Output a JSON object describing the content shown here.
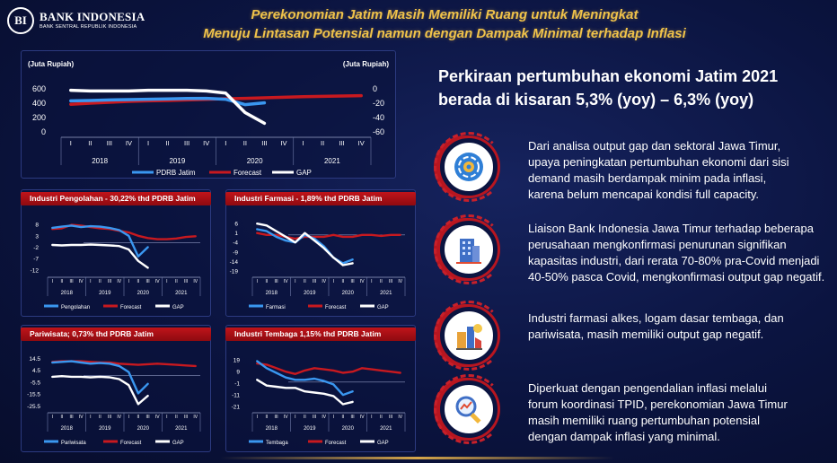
{
  "logo": {
    "name": "BANK INDONESIA",
    "sub": "BANK SENTRAL REPUBLIK INDONESIA"
  },
  "title": {
    "line1": "Perekonomian Jatim Masih Memiliki Ruang untuk Meningkat",
    "line2": "Menuju Lintasan Potensial namun dengan Dampak Minimal terhadap Inflasi"
  },
  "colors": {
    "pdrb": "#3a97f0",
    "forecast": "#c8191f",
    "gap": "#ffffff",
    "accent": "#f0c34a",
    "badge": "#b01218"
  },
  "quarters": [
    "I",
    "II",
    "III",
    "IV",
    "I",
    "II",
    "III",
    "IV",
    "I",
    "II",
    "III",
    "IV",
    "I",
    "II",
    "III",
    "IV"
  ],
  "years": [
    "2018",
    "2019",
    "2020",
    "2021"
  ],
  "chart_data": [
    {
      "id": "main",
      "type": "line",
      "left_axis_label": "(Juta Rupiah)",
      "right_axis_label": "(Juta Rupiah)",
      "left_ticks": [
        "600",
        "400",
        "200",
        "0"
      ],
      "right_ticks": [
        "0",
        "-20",
        "-40",
        "-60"
      ],
      "left_ylim": [
        0,
        600
      ],
      "right_ylim": [
        -60,
        0
      ],
      "legend": [
        "PDRB Jatim",
        "Forecast",
        "GAP"
      ],
      "series": [
        {
          "name": "PDRB Jatim",
          "axis": "left",
          "values": [
            433,
            438,
            445,
            450,
            455,
            460,
            465,
            468,
            455,
            380,
            405,
            null,
            null,
            null,
            null,
            null
          ]
        },
        {
          "name": "Forecast",
          "axis": "left",
          "values": [
            385,
            400,
            412,
            425,
            432,
            438,
            445,
            452,
            462,
            468,
            475,
            482,
            490,
            495,
            500,
            505
          ]
        },
        {
          "name": "GAP",
          "axis": "right",
          "values": [
            -2,
            -3,
            -3,
            -3,
            -2,
            -2,
            -2,
            -3,
            -6,
            -33,
            -48,
            null,
            null,
            null,
            null,
            null
          ]
        }
      ]
    },
    {
      "id": "pengolahan",
      "type": "line",
      "title": "Industri Pengolahan - 30,22% thd PDRB Jatim",
      "ticks": [
        "8",
        "3",
        "-2",
        "-7",
        "-12"
      ],
      "ylim": [
        -14,
        10
      ],
      "legend": [
        "Pengolahan",
        "Forecast",
        "GAP"
      ],
      "series": [
        {
          "name": "Pengolahan",
          "values": [
            6.5,
            7,
            7.5,
            6.8,
            7.2,
            7,
            6.4,
            5.5,
            3,
            -6,
            -2,
            null,
            null,
            null,
            null,
            null
          ]
        },
        {
          "name": "Forecast",
          "values": [
            6,
            6.3,
            7.8,
            7.5,
            6.8,
            6.3,
            6,
            5.2,
            4.5,
            3,
            2,
            1.5,
            1.5,
            1.8,
            2.5,
            2.8
          ]
        },
        {
          "name": "GAP",
          "values": [
            -1,
            -1.2,
            -1,
            -1,
            -0.8,
            -1,
            -1.2,
            -1.5,
            -3,
            -8,
            -11,
            null,
            null,
            null,
            null,
            null
          ]
        }
      ]
    },
    {
      "id": "farmasi",
      "type": "line",
      "title": "Industri Farmasi - 1,89% thd PDRB Jatim",
      "ticks": [
        "6",
        "1",
        "-4",
        "-9",
        "-14",
        "-19"
      ],
      "ylim": [
        -21,
        8
      ],
      "legend": [
        "Farmasi",
        "Forecast",
        "GAP"
      ],
      "series": [
        {
          "name": "Farmasi",
          "values": [
            3,
            2,
            -1,
            -3,
            -4,
            0,
            -2,
            -6,
            -12,
            -15,
            -13,
            null,
            null,
            null,
            null,
            null
          ]
        },
        {
          "name": "Forecast",
          "values": [
            1,
            0,
            0,
            -1,
            -2,
            -1,
            -1,
            -1,
            0,
            -1,
            -1,
            0,
            0,
            -0.5,
            0,
            0
          ]
        },
        {
          "name": "GAP",
          "values": [
            6,
            5,
            2,
            -1,
            -4,
            1,
            -3,
            -7,
            -12,
            -16,
            -15,
            null,
            null,
            null,
            null,
            null
          ]
        }
      ]
    },
    {
      "id": "pariwisata",
      "type": "line",
      "title": "Pariwisata; 0,73% thd PDRB Jatim",
      "ticks": [
        "14.5",
        "4.5",
        "-5.5",
        "-15.5",
        "-25.5"
      ],
      "ylim": [
        -29,
        17
      ],
      "legend": [
        "Pariwisata",
        "Forecast",
        "GAP"
      ],
      "series": [
        {
          "name": "Pariwisata",
          "values": [
            11,
            11.5,
            12,
            11,
            10,
            10.5,
            10,
            8,
            3,
            -15,
            -7,
            null,
            null,
            null,
            null,
            null
          ]
        },
        {
          "name": "Forecast",
          "values": [
            11.5,
            12,
            12,
            12,
            11.5,
            11,
            11,
            10,
            9.5,
            9,
            9.5,
            10,
            9.5,
            9,
            8.5,
            8
          ]
        },
        {
          "name": "GAP",
          "values": [
            -1,
            -0.5,
            -1,
            -1,
            -1.5,
            -1,
            -1.5,
            -3,
            -8,
            -24,
            -17,
            null,
            null,
            null,
            null,
            null
          ]
        }
      ]
    },
    {
      "id": "tembaga",
      "type": "line",
      "title": "Industri Tembaga 1,15% thd PDRB Jatim",
      "ticks": [
        "19",
        "9",
        "-1",
        "-11",
        "-21"
      ],
      "ylim": [
        -24,
        23
      ],
      "legend": [
        "Tembaga",
        "Forecast",
        "GAP"
      ],
      "series": [
        {
          "name": "Tembaga",
          "values": [
            18,
            12,
            8,
            4,
            2,
            2,
            3,
            1,
            -2,
            -11,
            -8,
            null,
            null,
            null,
            null,
            null
          ]
        },
        {
          "name": "Forecast",
          "values": [
            16,
            15,
            12,
            9,
            7,
            10,
            12,
            11,
            10,
            8,
            9,
            12,
            11,
            10,
            9,
            8
          ]
        },
        {
          "name": "GAP",
          "values": [
            2,
            -3,
            -4,
            -5,
            -5,
            -8,
            -9,
            -10,
            -12,
            -19,
            -17,
            null,
            null,
            null,
            null,
            null
          ]
        }
      ]
    }
  ],
  "right": {
    "heading_line1": "Perkiraan pertumbuhan ekonomi Jatim 2021",
    "heading_line2": "berada di kisaran 5,3% (yoy) – 6,3% (yoy)",
    "items": [
      {
        "icon": "gear-cycle-icon",
        "lines": [
          "Dari analisa output gap dan sektoral Jawa Timur,",
          "upaya peningkatan pertumbuhan ekonomi dari sisi",
          "demand masih berdampak minim pada inflasi,",
          "karena belum mencapai kondisi full capacity."
        ]
      },
      {
        "icon": "office-building-icon",
        "lines": [
          "Liaison Bank Indonesia Jawa Timur terhadap beberapa",
          "perusahaan mengkonfirmasi penurunan signifikan",
          "kapasitas industri, dari rerata 70-80% pra-Covid menjadi",
          "40-50% pasca Covid, mengkonfirmasi output gap negatif."
        ]
      },
      {
        "icon": "industry-pharmacy-icon",
        "lines": [
          "Industri farmasi alkes, logam dasar tembaga, dan",
          "pariwisata, masih memiliki output gap negatif."
        ]
      },
      {
        "icon": "magnifier-analysis-icon",
        "lines": [
          "Diperkuat dengan pengendalian inflasi melalui",
          "forum koordinasi TPID, perekonomian Jawa Timur",
          "masih memiliki ruang pertumbuhan potensial",
          "dengan dampak inflasi yang minimal."
        ]
      }
    ]
  }
}
